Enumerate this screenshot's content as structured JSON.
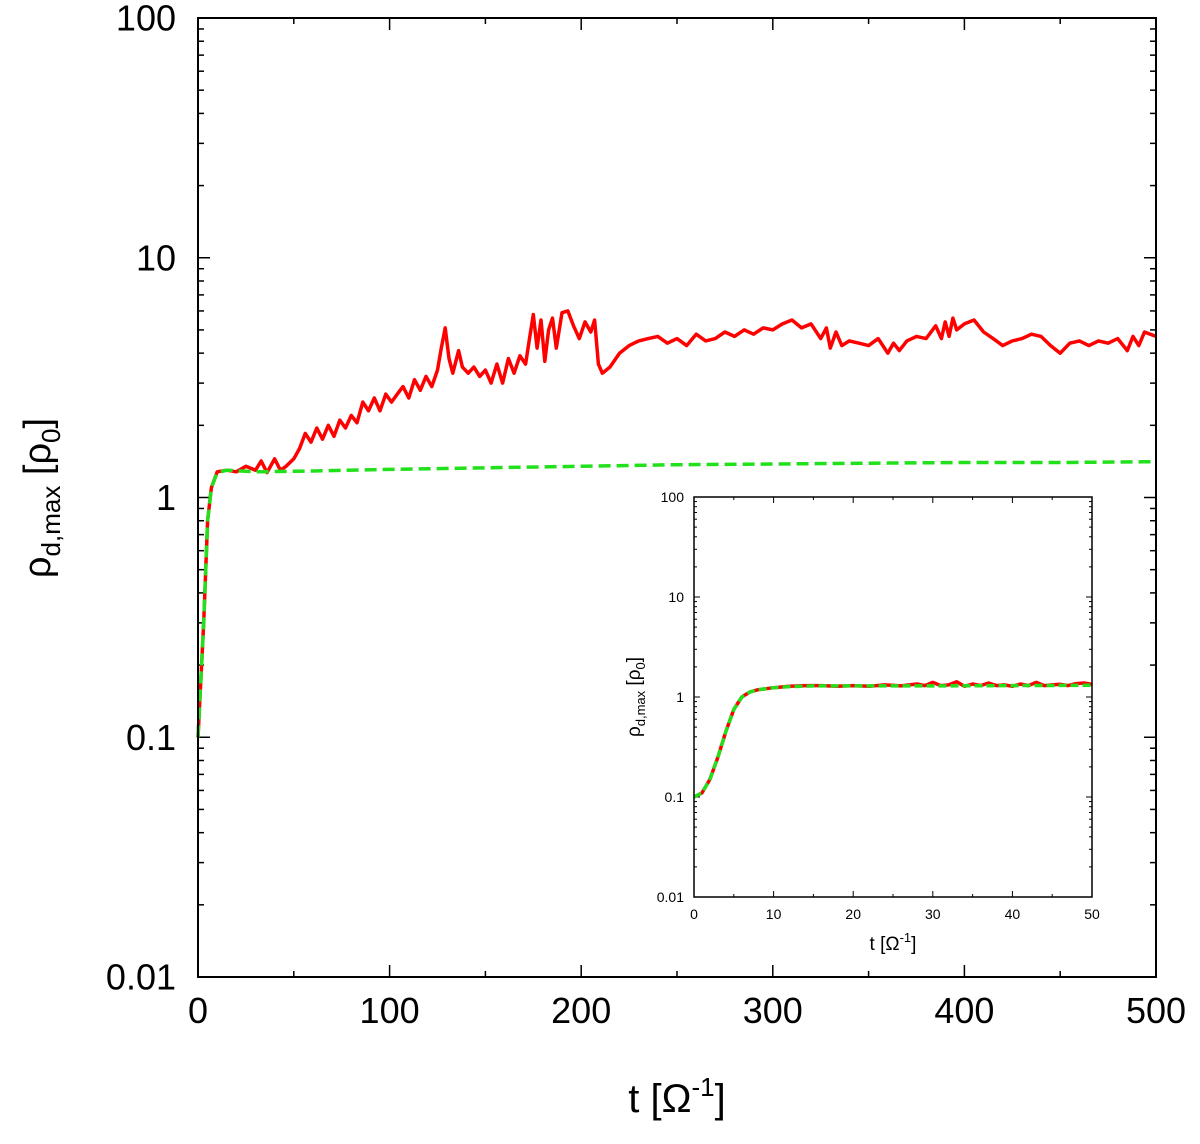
{
  "chart_data": [
    {
      "id": "main",
      "type": "line",
      "title": "",
      "xlabel": {
        "base": "t [Ω",
        "sup": "-1",
        "end": "]"
      },
      "ylabel": {
        "rho": "ρ",
        "sub": "d,max",
        "mid": " [ρ",
        "sub2": "0",
        "end": "]"
      },
      "x_ticks": [
        0,
        100,
        200,
        300,
        400,
        500
      ],
      "y_ticks": [
        0.01,
        0.1,
        1,
        10,
        100
      ],
      "y_tick_labels": [
        "0.01",
        "0.1",
        "1",
        "10",
        "100"
      ],
      "xlim": [
        0,
        500
      ],
      "ylim": [
        0.01,
        100
      ],
      "yscale": "log",
      "series": [
        {
          "name": "red",
          "color": "#ff0000",
          "style": "solid",
          "points": [
            [
              0,
              0.1
            ],
            [
              3,
              0.3
            ],
            [
              5,
              0.8
            ],
            [
              7,
              1.1
            ],
            [
              10,
              1.28
            ],
            [
              15,
              1.3
            ],
            [
              20,
              1.28
            ],
            [
              25,
              1.35
            ],
            [
              30,
              1.3
            ],
            [
              33,
              1.42
            ],
            [
              36,
              1.27
            ],
            [
              40,
              1.45
            ],
            [
              43,
              1.3
            ],
            [
              46,
              1.35
            ],
            [
              50,
              1.45
            ],
            [
              53,
              1.6
            ],
            [
              56,
              1.85
            ],
            [
              59,
              1.7
            ],
            [
              62,
              1.95
            ],
            [
              65,
              1.75
            ],
            [
              68,
              2.0
            ],
            [
              71,
              1.8
            ],
            [
              74,
              2.1
            ],
            [
              77,
              1.95
            ],
            [
              80,
              2.2
            ],
            [
              83,
              2.05
            ],
            [
              86,
              2.5
            ],
            [
              89,
              2.3
            ],
            [
              92,
              2.6
            ],
            [
              95,
              2.3
            ],
            [
              98,
              2.7
            ],
            [
              101,
              2.5
            ],
            [
              104,
              2.7
            ],
            [
              107,
              2.9
            ],
            [
              110,
              2.6
            ],
            [
              113,
              3.1
            ],
            [
              116,
              2.8
            ],
            [
              119,
              3.2
            ],
            [
              122,
              2.9
            ],
            [
              125,
              3.4
            ],
            [
              127,
              4.2
            ],
            [
              129,
              5.1
            ],
            [
              131,
              3.8
            ],
            [
              133,
              3.3
            ],
            [
              136,
              4.1
            ],
            [
              138,
              3.5
            ],
            [
              141,
              3.3
            ],
            [
              144,
              3.5
            ],
            [
              147,
              3.2
            ],
            [
              150,
              3.4
            ],
            [
              153,
              3.0
            ],
            [
              156,
              3.6
            ],
            [
              159,
              3.0
            ],
            [
              162,
              3.8
            ],
            [
              165,
              3.3
            ],
            [
              168,
              3.9
            ],
            [
              171,
              3.6
            ],
            [
              173,
              4.6
            ],
            [
              175,
              5.8
            ],
            [
              177,
              4.2
            ],
            [
              179,
              5.5
            ],
            [
              181,
              3.7
            ],
            [
              183,
              5.0
            ],
            [
              185,
              5.6
            ],
            [
              187,
              4.2
            ],
            [
              190,
              5.9
            ],
            [
              193,
              6.0
            ],
            [
              196,
              5.2
            ],
            [
              199,
              4.6
            ],
            [
              202,
              5.4
            ],
            [
              205,
              4.9
            ],
            [
              207,
              5.5
            ],
            [
              209,
              3.6
            ],
            [
              211,
              3.3
            ],
            [
              215,
              3.5
            ],
            [
              220,
              4.0
            ],
            [
              225,
              4.3
            ],
            [
              230,
              4.5
            ],
            [
              235,
              4.6
            ],
            [
              240,
              4.7
            ],
            [
              245,
              4.4
            ],
            [
              250,
              4.6
            ],
            [
              255,
              4.3
            ],
            [
              260,
              4.8
            ],
            [
              265,
              4.5
            ],
            [
              270,
              4.6
            ],
            [
              275,
              4.9
            ],
            [
              280,
              4.7
            ],
            [
              285,
              5.0
            ],
            [
              290,
              4.8
            ],
            [
              295,
              5.1
            ],
            [
              300,
              5.0
            ],
            [
              305,
              5.3
            ],
            [
              310,
              5.5
            ],
            [
              315,
              5.1
            ],
            [
              320,
              5.3
            ],
            [
              325,
              4.6
            ],
            [
              328,
              5.1
            ],
            [
              330,
              4.2
            ],
            [
              333,
              4.9
            ],
            [
              336,
              4.3
            ],
            [
              340,
              4.5
            ],
            [
              345,
              4.4
            ],
            [
              350,
              4.3
            ],
            [
              355,
              4.6
            ],
            [
              360,
              4.0
            ],
            [
              363,
              4.4
            ],
            [
              366,
              4.1
            ],
            [
              370,
              4.5
            ],
            [
              375,
              4.7
            ],
            [
              380,
              4.6
            ],
            [
              385,
              5.2
            ],
            [
              388,
              4.6
            ],
            [
              390,
              5.4
            ],
            [
              392,
              4.7
            ],
            [
              394,
              5.6
            ],
            [
              396,
              5.0
            ],
            [
              400,
              5.3
            ],
            [
              405,
              5.5
            ],
            [
              410,
              4.9
            ],
            [
              415,
              4.6
            ],
            [
              420,
              4.3
            ],
            [
              425,
              4.5
            ],
            [
              430,
              4.6
            ],
            [
              435,
              4.8
            ],
            [
              440,
              4.7
            ],
            [
              445,
              4.3
            ],
            [
              450,
              4.0
            ],
            [
              455,
              4.4
            ],
            [
              460,
              4.5
            ],
            [
              465,
              4.3
            ],
            [
              470,
              4.5
            ],
            [
              475,
              4.4
            ],
            [
              480,
              4.6
            ],
            [
              485,
              4.1
            ],
            [
              488,
              4.7
            ],
            [
              491,
              4.3
            ],
            [
              494,
              4.9
            ],
            [
              497,
              4.8
            ],
            [
              500,
              4.7
            ]
          ]
        },
        {
          "name": "green",
          "color": "#22e01c",
          "style": "dashed",
          "points": [
            [
              0,
              0.1
            ],
            [
              3,
              0.3
            ],
            [
              5,
              0.8
            ],
            [
              7,
              1.1
            ],
            [
              10,
              1.27
            ],
            [
              15,
              1.3
            ],
            [
              30,
              1.28
            ],
            [
              60,
              1.29
            ],
            [
              100,
              1.31
            ],
            [
              150,
              1.33
            ],
            [
              200,
              1.35
            ],
            [
              250,
              1.37
            ],
            [
              300,
              1.38
            ],
            [
              350,
              1.39
            ],
            [
              400,
              1.4
            ],
            [
              450,
              1.4
            ],
            [
              500,
              1.41
            ]
          ]
        }
      ]
    },
    {
      "id": "inset",
      "type": "line",
      "title": "",
      "xlabel": {
        "base": "t [Ω",
        "sup": "-1",
        "end": "]"
      },
      "ylabel": {
        "rho": "ρ",
        "sub": "d,max",
        "mid": " [ρ",
        "sub2": "0",
        "end": "]"
      },
      "x_ticks": [
        0,
        10,
        20,
        30,
        40,
        50
      ],
      "y_ticks": [
        0.01,
        0.1,
        1,
        10,
        100
      ],
      "y_tick_labels": [
        "0.01",
        "0.1",
        "1",
        "10",
        "100"
      ],
      "xlim": [
        0,
        50
      ],
      "ylim": [
        0.01,
        100
      ],
      "yscale": "log",
      "series": [
        {
          "name": "red",
          "color": "#ff0000",
          "style": "solid",
          "points": [
            [
              0,
              0.1
            ],
            [
              1,
              0.11
            ],
            [
              2,
              0.15
            ],
            [
              3,
              0.25
            ],
            [
              4,
              0.45
            ],
            [
              5,
              0.75
            ],
            [
              6,
              1.0
            ],
            [
              7,
              1.12
            ],
            [
              8,
              1.18
            ],
            [
              10,
              1.24
            ],
            [
              12,
              1.28
            ],
            [
              14,
              1.3
            ],
            [
              16,
              1.3
            ],
            [
              18,
              1.28
            ],
            [
              20,
              1.3
            ],
            [
              22,
              1.28
            ],
            [
              24,
              1.32
            ],
            [
              26,
              1.29
            ],
            [
              28,
              1.35
            ],
            [
              29,
              1.3
            ],
            [
              30,
              1.4
            ],
            [
              31,
              1.3
            ],
            [
              32,
              1.32
            ],
            [
              33,
              1.42
            ],
            [
              34,
              1.28
            ],
            [
              35,
              1.35
            ],
            [
              36,
              1.3
            ],
            [
              37,
              1.38
            ],
            [
              38,
              1.3
            ],
            [
              39,
              1.32
            ],
            [
              40,
              1.28
            ],
            [
              41,
              1.35
            ],
            [
              42,
              1.3
            ],
            [
              43,
              1.4
            ],
            [
              44,
              1.3
            ],
            [
              45,
              1.32
            ],
            [
              46,
              1.34
            ],
            [
              47,
              1.3
            ],
            [
              48,
              1.36
            ],
            [
              49,
              1.38
            ],
            [
              50,
              1.34
            ]
          ]
        },
        {
          "name": "green",
          "color": "#22e01c",
          "style": "dashed",
          "points": [
            [
              0,
              0.1
            ],
            [
              1,
              0.11
            ],
            [
              2,
              0.15
            ],
            [
              3,
              0.25
            ],
            [
              4,
              0.45
            ],
            [
              5,
              0.75
            ],
            [
              6,
              1.0
            ],
            [
              7,
              1.12
            ],
            [
              8,
              1.18
            ],
            [
              10,
              1.24
            ],
            [
              12,
              1.27
            ],
            [
              15,
              1.29
            ],
            [
              20,
              1.29
            ],
            [
              30,
              1.29
            ],
            [
              40,
              1.3
            ],
            [
              50,
              1.31
            ]
          ]
        }
      ]
    }
  ]
}
